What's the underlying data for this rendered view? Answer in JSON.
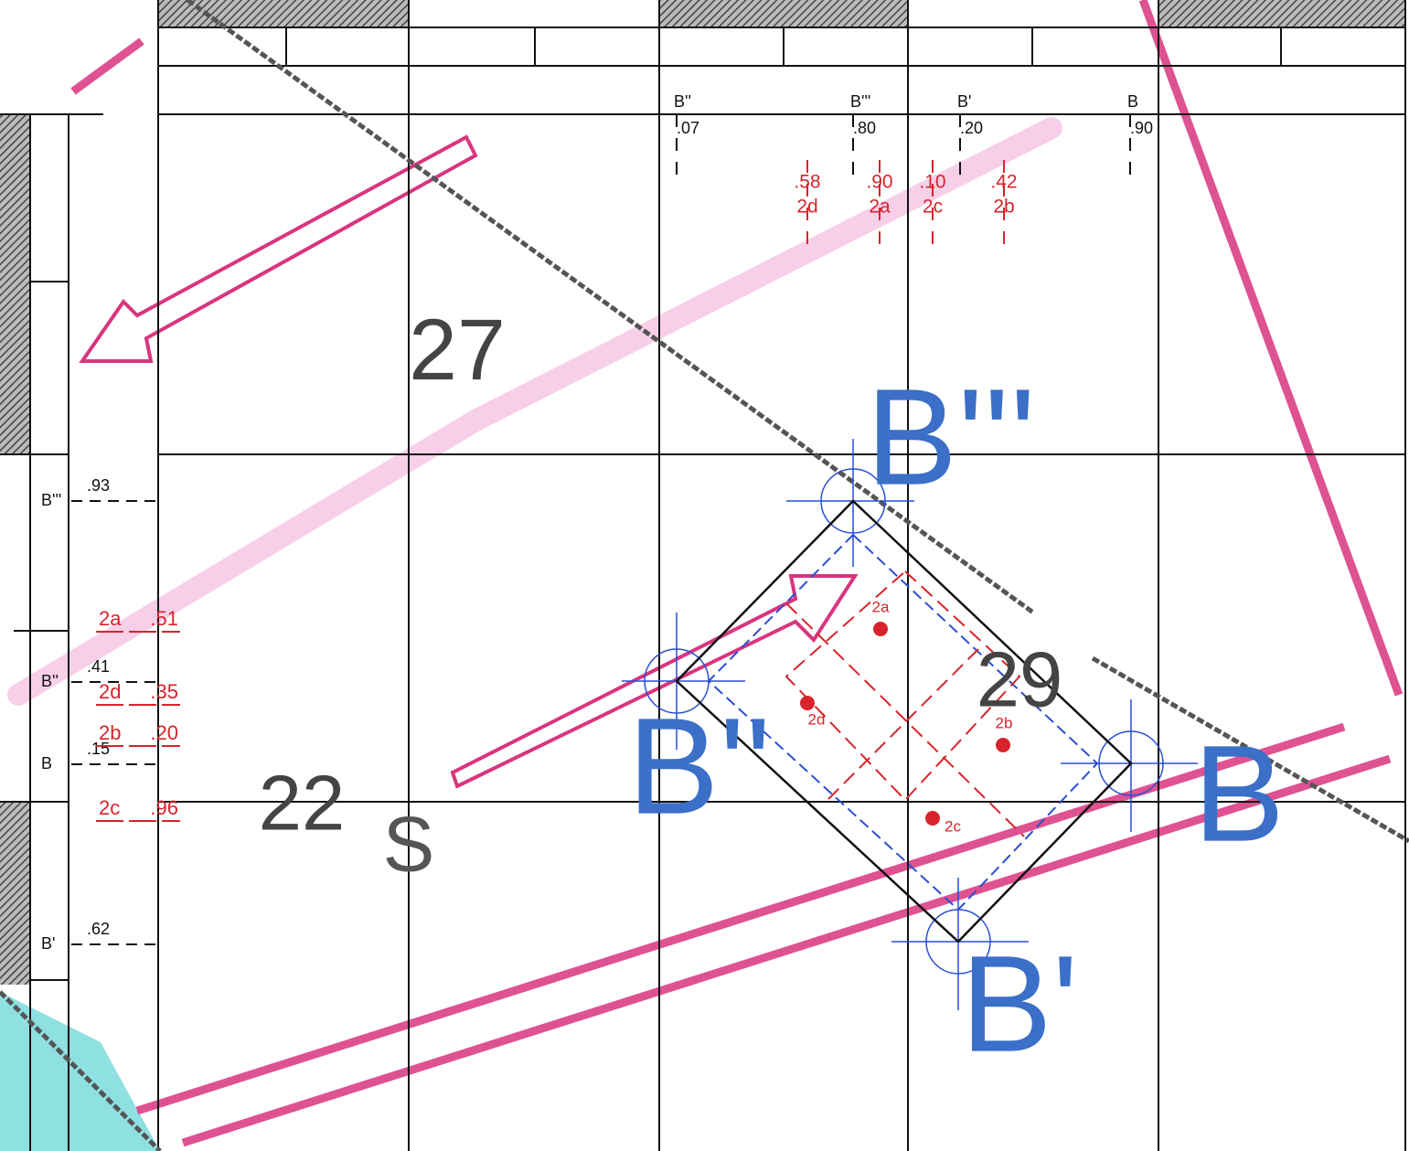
{
  "depths": [
    "27",
    "22",
    "29"
  ],
  "sounding_letter": "S",
  "corners": [
    "B'''",
    "B''",
    "B",
    "B'"
  ],
  "top_scale": [
    {
      "label": "B''",
      "fraction": ".07"
    },
    {
      "label": "B'''",
      "fraction": ".80"
    },
    {
      "label": "B'",
      "fraction": ".20"
    },
    {
      "label": "B",
      "fraction": ".90"
    }
  ],
  "top_red_scale": [
    {
      "label": "2d",
      "fraction": ".58"
    },
    {
      "label": "2a",
      "fraction": ".90"
    },
    {
      "label": "2c",
      "fraction": ".10"
    },
    {
      "label": "2b",
      "fraction": ".42"
    }
  ],
  "left_scale": [
    {
      "label": "B'''",
      "fraction": ".93"
    },
    {
      "label": "B''",
      "fraction": ".41"
    },
    {
      "label": "B",
      "fraction": ".15"
    },
    {
      "label": "B'",
      "fraction": ".62"
    }
  ],
  "left_red_scale": [
    {
      "label": "2a",
      "fraction": ".51"
    },
    {
      "label": "2d",
      "fraction": ".35"
    },
    {
      "label": "2b",
      "fraction": ".20"
    },
    {
      "label": "2c",
      "fraction": ".96"
    }
  ],
  "points": [
    "2a",
    "2d",
    "2b",
    "2c"
  ]
}
